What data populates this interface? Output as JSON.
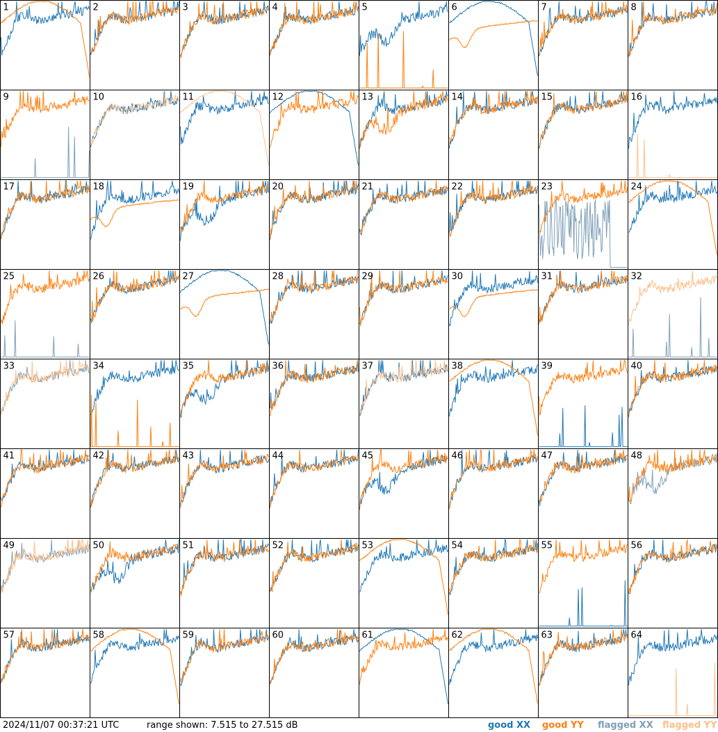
{
  "footer": {
    "timestamp": "2024/11/07 00:37:21 UTC",
    "range_text": "range shown: 7.515 to 27.515 dB"
  },
  "legend": [
    {
      "id": "good_xx",
      "label": "good XX",
      "color": "#1f77b4"
    },
    {
      "id": "good_yy",
      "label": "good YY",
      "color": "#ff7f0e"
    },
    {
      "id": "flagged_xx",
      "label": "flagged XX",
      "color": "#7f9fb8"
    },
    {
      "id": "flagged_yy",
      "label": "flagged YY",
      "color": "#ffbf8a"
    }
  ],
  "chart_data": {
    "type": "line",
    "layout": "8x8 small multiples, one spectrum per antenna",
    "y_unit": "dB",
    "ylim": [
      7.515,
      27.515
    ],
    "grid": false,
    "legend_position": "bottom-right",
    "panels": [
      {
        "label": "1",
        "xx": "good",
        "yy": "good",
        "xx_shape": "normal",
        "yy_shape": "rolloff"
      },
      {
        "label": "2",
        "xx": "good",
        "yy": "good",
        "xx_shape": "normal",
        "yy_shape": "normal"
      },
      {
        "label": "3",
        "xx": "good",
        "yy": "good",
        "xx_shape": "normal",
        "yy_shape": "normal"
      },
      {
        "label": "4",
        "xx": "good",
        "yy": "good",
        "xx_shape": "normal",
        "yy_shape": "normal"
      },
      {
        "label": "5",
        "xx": "good",
        "yy": "good",
        "xx_shape": "dip",
        "yy_shape": "dead"
      },
      {
        "label": "6",
        "xx": "good",
        "yy": "good",
        "xx_shape": "rolloff",
        "yy_shape": "smooth"
      },
      {
        "label": "7",
        "xx": "good",
        "yy": "good",
        "xx_shape": "normal",
        "yy_shape": "normal"
      },
      {
        "label": "8",
        "xx": "good",
        "yy": "good",
        "xx_shape": "normal",
        "yy_shape": "normal"
      },
      {
        "label": "9",
        "xx": "flagged",
        "yy": "good",
        "xx_shape": "dead",
        "yy_shape": "normal"
      },
      {
        "label": "10",
        "xx": "good",
        "yy": "flagged",
        "xx_shape": "normal",
        "yy_shape": "normal"
      },
      {
        "label": "11",
        "xx": "good",
        "yy": "flagged",
        "xx_shape": "normal",
        "yy_shape": "rolloff"
      },
      {
        "label": "12",
        "xx": "good",
        "yy": "good",
        "xx_shape": "rolloff",
        "yy_shape": "normal"
      },
      {
        "label": "13",
        "xx": "good",
        "yy": "good",
        "xx_shape": "normal",
        "yy_shape": "dip"
      },
      {
        "label": "14",
        "xx": "good",
        "yy": "good",
        "xx_shape": "normal",
        "yy_shape": "normal"
      },
      {
        "label": "15",
        "xx": "good",
        "yy": "good",
        "xx_shape": "normal",
        "yy_shape": "normal"
      },
      {
        "label": "16",
        "xx": "good",
        "yy": "flagged",
        "xx_shape": "normal",
        "yy_shape": "dead"
      },
      {
        "label": "17",
        "xx": "good",
        "yy": "good",
        "xx_shape": "normal",
        "yy_shape": "normal"
      },
      {
        "label": "18",
        "xx": "good",
        "yy": "good",
        "xx_shape": "normal",
        "yy_shape": "smooth"
      },
      {
        "label": "19",
        "xx": "good",
        "yy": "good",
        "xx_shape": "dip",
        "yy_shape": "normal"
      },
      {
        "label": "20",
        "xx": "good",
        "yy": "good",
        "xx_shape": "normal",
        "yy_shape": "normal"
      },
      {
        "label": "21",
        "xx": "good",
        "yy": "good",
        "xx_shape": "normal",
        "yy_shape": "normal"
      },
      {
        "label": "22",
        "xx": "good",
        "yy": "good",
        "xx_shape": "normal",
        "yy_shape": "normal"
      },
      {
        "label": "23",
        "xx": "flagged",
        "yy": "good",
        "xx_shape": "noisy",
        "yy_shape": "normal"
      },
      {
        "label": "24",
        "xx": "good",
        "yy": "good",
        "xx_shape": "normal",
        "yy_shape": "rolloff"
      },
      {
        "label": "25",
        "xx": "flagged",
        "yy": "good",
        "xx_shape": "dead",
        "yy_shape": "normal"
      },
      {
        "label": "26",
        "xx": "good",
        "yy": "good",
        "xx_shape": "normal",
        "yy_shape": "normal"
      },
      {
        "label": "27",
        "xx": "good",
        "yy": "good",
        "xx_shape": "rolloff",
        "yy_shape": "smooth"
      },
      {
        "label": "28",
        "xx": "good",
        "yy": "good",
        "xx_shape": "normal",
        "yy_shape": "normal"
      },
      {
        "label": "29",
        "xx": "good",
        "yy": "good",
        "xx_shape": "normal",
        "yy_shape": "normal"
      },
      {
        "label": "30",
        "xx": "good",
        "yy": "good",
        "xx_shape": "normal",
        "yy_shape": "smooth"
      },
      {
        "label": "31",
        "xx": "good",
        "yy": "good",
        "xx_shape": "normal",
        "yy_shape": "normal"
      },
      {
        "label": "32",
        "xx": "flagged",
        "yy": "flagged",
        "xx_shape": "dead",
        "yy_shape": "normal"
      },
      {
        "label": "33",
        "xx": "flagged",
        "yy": "flagged",
        "xx_shape": "normal",
        "yy_shape": "normal"
      },
      {
        "label": "34",
        "xx": "good",
        "yy": "good",
        "xx_shape": "normal",
        "yy_shape": "dead"
      },
      {
        "label": "35",
        "xx": "good",
        "yy": "good",
        "xx_shape": "dip",
        "yy_shape": "normal"
      },
      {
        "label": "36",
        "xx": "good",
        "yy": "good",
        "xx_shape": "normal",
        "yy_shape": "normal"
      },
      {
        "label": "37",
        "xx": "good",
        "yy": "flagged",
        "xx_shape": "normal",
        "yy_shape": "normal"
      },
      {
        "label": "38",
        "xx": "good",
        "yy": "good",
        "xx_shape": "normal",
        "yy_shape": "rolloff"
      },
      {
        "label": "39",
        "xx": "good",
        "yy": "good",
        "xx_shape": "dead",
        "yy_shape": "normal"
      },
      {
        "label": "40",
        "xx": "good",
        "yy": "good",
        "xx_shape": "normal",
        "yy_shape": "normal"
      },
      {
        "label": "41",
        "xx": "good",
        "yy": "good",
        "xx_shape": "normal",
        "yy_shape": "normal"
      },
      {
        "label": "42",
        "xx": "good",
        "yy": "good",
        "xx_shape": "normal",
        "yy_shape": "normal"
      },
      {
        "label": "43",
        "xx": "good",
        "yy": "good",
        "xx_shape": "normal",
        "yy_shape": "normal"
      },
      {
        "label": "44",
        "xx": "good",
        "yy": "good",
        "xx_shape": "normal",
        "yy_shape": "normal"
      },
      {
        "label": "45",
        "xx": "good",
        "yy": "good",
        "xx_shape": "dip",
        "yy_shape": "normal"
      },
      {
        "label": "46",
        "xx": "good",
        "yy": "good",
        "xx_shape": "normal",
        "yy_shape": "normal"
      },
      {
        "label": "47",
        "xx": "good",
        "yy": "good",
        "xx_shape": "normal",
        "yy_shape": "normal"
      },
      {
        "label": "48",
        "xx": "flagged",
        "yy": "good",
        "xx_shape": "dip",
        "yy_shape": "normal"
      },
      {
        "label": "49",
        "xx": "flagged",
        "yy": "flagged",
        "xx_shape": "normal",
        "yy_shape": "normal"
      },
      {
        "label": "50",
        "xx": "good",
        "yy": "good",
        "xx_shape": "dip",
        "yy_shape": "normal"
      },
      {
        "label": "51",
        "xx": "good",
        "yy": "good",
        "xx_shape": "normal",
        "yy_shape": "normal"
      },
      {
        "label": "52",
        "xx": "good",
        "yy": "good",
        "xx_shape": "normal",
        "yy_shape": "normal"
      },
      {
        "label": "53",
        "xx": "good",
        "yy": "good",
        "xx_shape": "normal",
        "yy_shape": "rolloff"
      },
      {
        "label": "54",
        "xx": "good",
        "yy": "good",
        "xx_shape": "normal",
        "yy_shape": "normal"
      },
      {
        "label": "55",
        "xx": "good",
        "yy": "good",
        "xx_shape": "dead",
        "yy_shape": "normal"
      },
      {
        "label": "56",
        "xx": "good",
        "yy": "good",
        "xx_shape": "normal",
        "yy_shape": "normal"
      },
      {
        "label": "57",
        "xx": "good",
        "yy": "good",
        "xx_shape": "normal",
        "yy_shape": "normal"
      },
      {
        "label": "58",
        "xx": "good",
        "yy": "good",
        "xx_shape": "normal",
        "yy_shape": "rolloff"
      },
      {
        "label": "59",
        "xx": "good",
        "yy": "good",
        "xx_shape": "normal",
        "yy_shape": "normal"
      },
      {
        "label": "60",
        "xx": "good",
        "yy": "good",
        "xx_shape": "normal",
        "yy_shape": "normal"
      },
      {
        "label": "61",
        "xx": "good",
        "yy": "good",
        "xx_shape": "rolloff",
        "yy_shape": "normal"
      },
      {
        "label": "62",
        "xx": "good",
        "yy": "good",
        "xx_shape": "normal",
        "yy_shape": "rolloff"
      },
      {
        "label": "63",
        "xx": "good",
        "yy": "good",
        "xx_shape": "normal",
        "yy_shape": "normal"
      },
      {
        "label": "64",
        "xx": "good",
        "yy": "flagged",
        "xx_shape": "normal",
        "yy_shape": "dead"
      }
    ]
  }
}
